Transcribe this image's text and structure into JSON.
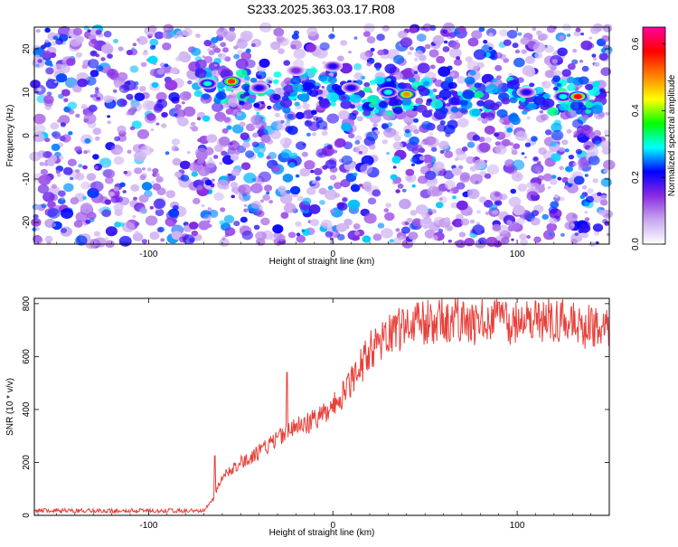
{
  "title": "S233.2025.363.03.17.R08",
  "chart_data": [
    {
      "type": "heatmap",
      "xlabel": "Height of straight line (km)",
      "ylabel": "Frequency (Hz)",
      "xlim": [
        -162,
        150
      ],
      "ylim": [
        -25,
        25
      ],
      "x_ticks": [
        -100,
        0,
        100
      ],
      "y_ticks": [
        -20,
        -10,
        0,
        10,
        20
      ],
      "colorbar": {
        "label": "Normalized spectral amplitude",
        "range": [
          0,
          0.65
        ],
        "ticks": [
          0.0,
          0.2,
          0.4,
          0.6
        ],
        "colors": [
          "#ffffff",
          "#c8a8f0",
          "#8a2be2",
          "#0000ff",
          "#00ffff",
          "#00ff00",
          "#ffff00",
          "#ff8000",
          "#ff0000",
          "#ff00a0"
        ]
      },
      "bright_features": [
        {
          "x": -68,
          "y": 12,
          "amplitude": 0.3
        },
        {
          "x": -55,
          "y": 12.5,
          "amplitude": 0.55
        },
        {
          "x": -40,
          "y": 11,
          "amplitude": 0.2
        },
        {
          "x": -20,
          "y": 15,
          "amplitude": 0.15
        },
        {
          "x": 0,
          "y": 16,
          "amplitude": 0.2
        },
        {
          "x": 10,
          "y": 11,
          "amplitude": 0.2
        },
        {
          "x": 30,
          "y": 10,
          "amplitude": 0.3
        },
        {
          "x": 40,
          "y": 9.5,
          "amplitude": 0.5
        },
        {
          "x": 105,
          "y": 10,
          "amplitude": 0.2
        },
        {
          "x": 125,
          "y": 9,
          "amplitude": 0.3
        },
        {
          "x": 133,
          "y": 9,
          "amplitude": 0.6
        }
      ]
    },
    {
      "type": "line",
      "xlabel": "Height of straight line (km)",
      "ylabel": "SNR (10 * v/v)",
      "xlim": [
        -162,
        150
      ],
      "ylim": [
        0,
        820
      ],
      "x_ticks": [
        -100,
        0,
        100
      ],
      "y_ticks": [
        0,
        200,
        400,
        600,
        800
      ],
      "series": [
        {
          "color": "#e8403a",
          "x": [
            -162,
            -150,
            -140,
            -130,
            -120,
            -110,
            -100,
            -90,
            -80,
            -70,
            -65,
            -60,
            -55,
            -50,
            -45,
            -40,
            -35,
            -30,
            -25,
            -20,
            -15,
            -10,
            -5,
            0,
            5,
            10,
            15,
            20,
            25,
            30,
            35,
            40,
            45,
            50,
            55,
            60,
            65,
            70,
            75,
            80,
            85,
            90,
            95,
            100,
            105,
            110,
            115,
            120,
            125,
            130,
            135,
            140,
            145,
            150
          ],
          "y": [
            18,
            18,
            17,
            18,
            17,
            18,
            17,
            18,
            17,
            18,
            60,
            150,
            170,
            200,
            215,
            240,
            265,
            290,
            310,
            330,
            345,
            360,
            380,
            410,
            450,
            500,
            560,
            620,
            660,
            690,
            700,
            715,
            720,
            730,
            735,
            735,
            740,
            730,
            720,
            730,
            740,
            730,
            720,
            725,
            735,
            740,
            745,
            740,
            735,
            720,
            710,
            720,
            725,
            710
          ]
        }
      ],
      "spikes": [
        {
          "x": -64,
          "y": 225
        },
        {
          "x": -25,
          "y": 540
        },
        {
          "x": 90,
          "y": 805
        },
        {
          "x": 110,
          "y": 810
        }
      ]
    }
  ]
}
